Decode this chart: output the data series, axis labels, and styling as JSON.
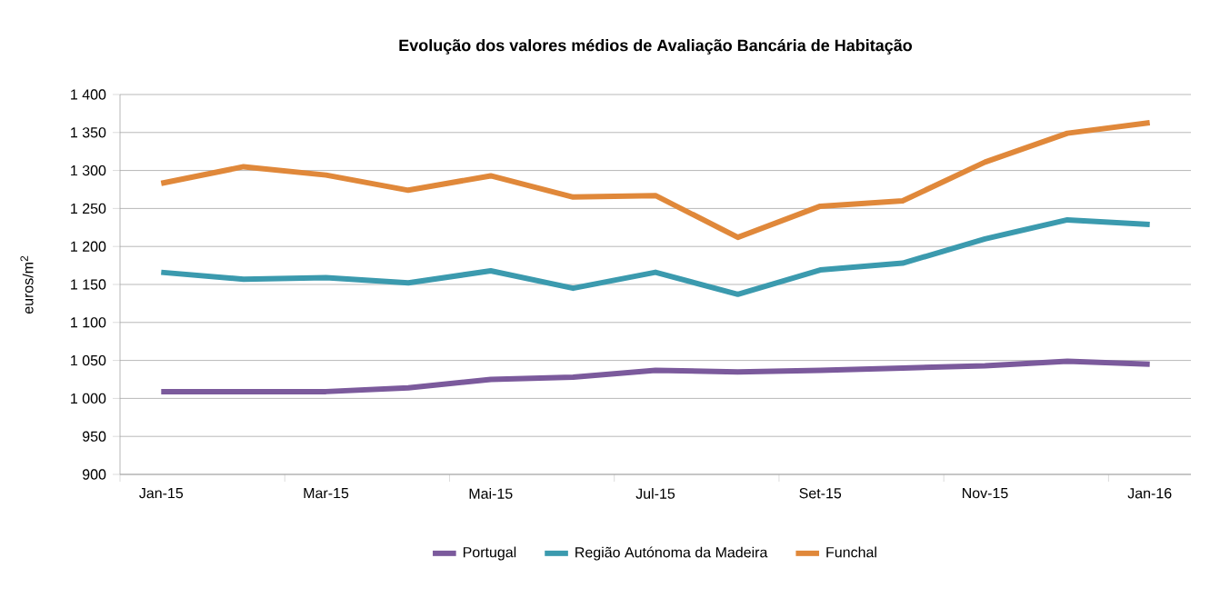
{
  "chart_data": {
    "type": "line",
    "title": "Evolução dos valores médios de Avaliação Bancária de Habitação",
    "ylabel": "euros/m$^{2}$",
    "categories": [
      "Jan-15",
      null,
      "Mar-15",
      null,
      "Mai-15",
      null,
      "Jul-15",
      null,
      "Set-15",
      null,
      "Nov-15",
      null,
      "Jan-16"
    ],
    "series": [
      {
        "name": "Portugal",
        "color": "#7b5a9c",
        "values": [
          1009,
          1009,
          1009,
          1014,
          1025,
          1028,
          1037,
          1035,
          1037,
          1040,
          1043,
          1049,
          1045
        ]
      },
      {
        "name": "Região Autónoma da Madeira",
        "color": "#3b9aae",
        "values": [
          1166,
          1157,
          1159,
          1152,
          1168,
          1145,
          1166,
          1137,
          1169,
          1178,
          1210,
          1235,
          1229
        ]
      },
      {
        "name": "Funchal",
        "color": "#e0883a",
        "values": [
          1283,
          1305,
          1294,
          1274,
          1293,
          1265,
          1267,
          1212,
          1253,
          1260,
          1311,
          1349,
          1363
        ]
      }
    ],
    "ylim": [
      900,
      1400
    ],
    "yticks": [
      900,
      950,
      {
        "value": 1000,
        "label": "1 000"
      },
      {
        "value": 1050,
        "label": "1 050"
      },
      {
        "value": 1100,
        "label": "1 100"
      },
      {
        "value": 1150,
        "label": "1 150"
      },
      {
        "value": 1200,
        "label": "1 200"
      },
      {
        "value": 1250,
        "label": "1 250"
      },
      {
        "value": 1300,
        "label": "1 300"
      },
      {
        "value": 1350,
        "label": "1 350"
      },
      {
        "value": 1400,
        "label": "1 400"
      }
    ],
    "grid": "y",
    "legend": "bottom",
    "marker": "none",
    "line_style": "solid"
  }
}
